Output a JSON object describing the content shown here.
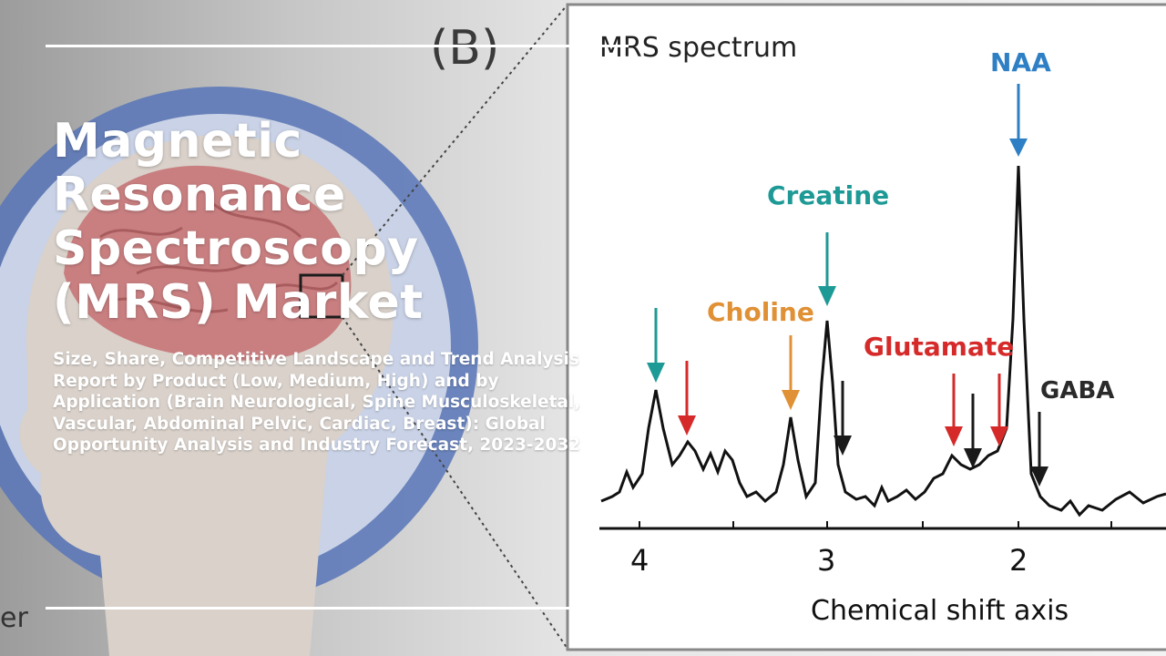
{
  "title": "Magnetic Resonance Spectroscopy (MRS) Market",
  "subtitle": "Size, Share, Competitive Landscape and Trend Analysis Report by Product (Low, Medium, High) and by Application (Brain Neurological, Spine Musculoskeletal, Vascular, Abdominal Pelvic, Cardiac, Breast): Global Opportunity Analysis and Industry Forecast, 2023-2032",
  "figure": {
    "panel_label": "(B)",
    "spectrum_title": "MRS spectrum",
    "corner_text": "er",
    "x_axis_label": "Chemical shift axis",
    "x_ticks": [
      "4",
      "3",
      "2"
    ],
    "peaks": [
      {
        "label": "NAA",
        "color": "#2f7fc4"
      },
      {
        "label": "Creatine",
        "color": "#1e9a96"
      },
      {
        "label": "Choline",
        "color": "#e09035"
      },
      {
        "label": "Glutamate",
        "color": "#d62a2a"
      },
      {
        "label": "GABA",
        "color": "#2a2a2a"
      }
    ]
  }
}
